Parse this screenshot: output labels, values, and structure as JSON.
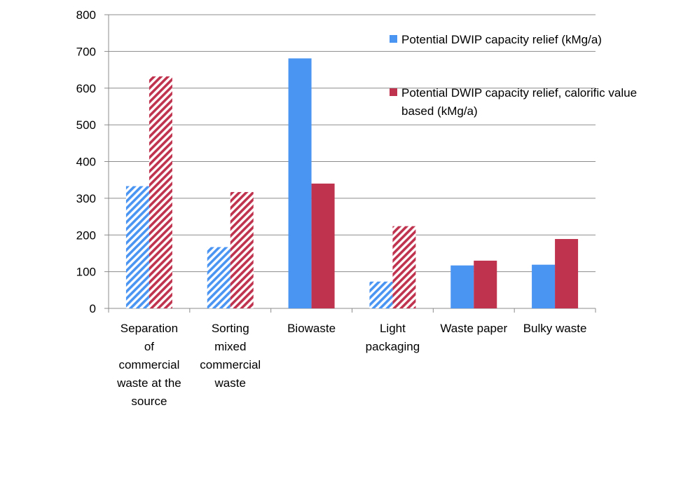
{
  "chart_data": {
    "type": "bar",
    "categories": [
      "Separation of commercial waste at the source",
      "Sorting mixed commercial waste",
      "Biowaste",
      "Light packaging",
      "Waste paper",
      "Bulky waste"
    ],
    "category_label_lines": [
      [
        "Separation",
        "of",
        "commercial",
        "waste at the",
        "source"
      ],
      [
        "Sorting",
        "mixed",
        "commercial",
        "waste"
      ],
      [
        "Biowaste"
      ],
      [
        "Light",
        "packaging"
      ],
      [
        "Waste paper"
      ],
      [
        "Bulky waste"
      ]
    ],
    "series": [
      {
        "name": "Potential DWIP capacity relief (kMg/a)",
        "legend_lines": [
          "Potential DWIP capacity relief (kMg/a)"
        ],
        "color": "#4a94f2",
        "values": [
          333,
          167,
          681,
          73,
          117,
          119
        ],
        "hatched": [
          true,
          true,
          false,
          true,
          false,
          false
        ]
      },
      {
        "name": "Potential DWIP capacity relief, calorific value based (kMg/a)",
        "legend_lines": [
          "Potential DWIP capacity relief, calorific value",
          "based (kMg/a)"
        ],
        "color": "#c0334f",
        "values": [
          632,
          317,
          340,
          224,
          130,
          189
        ],
        "hatched": [
          true,
          true,
          false,
          true,
          false,
          false
        ]
      }
    ],
    "ylim": [
      0,
      800
    ],
    "yticks": [
      0,
      100,
      200,
      300,
      400,
      500,
      600,
      700,
      800
    ],
    "grid": true,
    "legend_position": "top-right",
    "title": "",
    "xlabel": "",
    "ylabel": ""
  }
}
